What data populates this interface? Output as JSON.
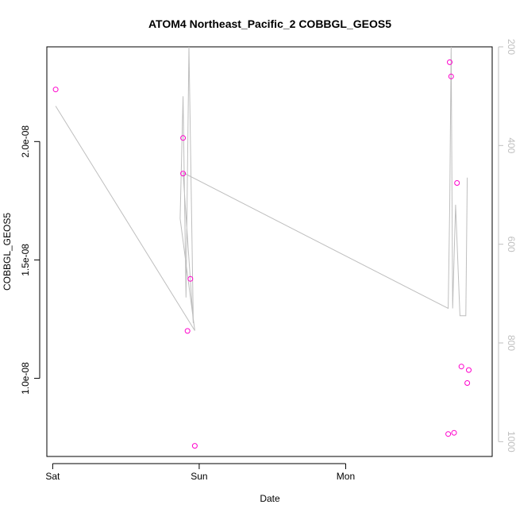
{
  "chart_data": {
    "type": "scatter",
    "title": "ATOM4 Northeast_Pacific_2 COBBGL_GEOS5",
    "xlabel": "Date",
    "ylabel": "COBBGL_GEOS5",
    "x_ticks": [
      "Sat",
      "Sun",
      "Mon"
    ],
    "y_ticks": [
      "1.0e-08",
      "1.5e-08",
      "2.0e-08"
    ],
    "y_tick_values": [
      1e-08,
      1.5e-08,
      2e-08
    ],
    "y2_ticks": [
      "200",
      "400",
      "600",
      "800",
      "1000"
    ],
    "y2_tick_values": [
      200,
      400,
      600,
      800,
      1000
    ],
    "y2_reversed": true,
    "x_day_positions": {
      "Sat": 0,
      "Sun": 1,
      "Mon": 2
    },
    "xlim": [
      -0.04,
      3.0
    ],
    "ylim": [
      6.7e-09,
      2.4e-08
    ],
    "y2lim": [
      1030,
      200
    ],
    "point_color": "#ff00cc",
    "line_color": "#bebebe",
    "points": [
      {
        "x": 0.02,
        "y": 2.22e-08
      },
      {
        "x": 0.89,
        "y": 2.015e-08
      },
      {
        "x": 0.89,
        "y": 1.865e-08
      },
      {
        "x": 0.94,
        "y": 1.42e-08
      },
      {
        "x": 0.92,
        "y": 1.2e-08
      },
      {
        "x": 0.97,
        "y": 7.15e-09
      },
      {
        "x": 2.71,
        "y": 2.335e-08
      },
      {
        "x": 2.72,
        "y": 2.275e-08
      },
      {
        "x": 2.76,
        "y": 1.825e-08
      },
      {
        "x": 2.79,
        "y": 1.05e-08
      },
      {
        "x": 2.83,
        "y": 9.8e-09
      },
      {
        "x": 2.84,
        "y": 1.035e-08
      },
      {
        "x": 2.7,
        "y": 7.65e-09
      },
      {
        "x": 2.74,
        "y": 7.7e-09
      }
    ],
    "pressure_line": [
      {
        "x": 0.02,
        "p": 320
      },
      {
        "x": 0.97,
        "p": 775
      },
      {
        "x": 0.87,
        "p": 548
      },
      {
        "x": 0.89,
        "p": 300
      },
      {
        "x": 0.91,
        "p": 708
      },
      {
        "x": 0.93,
        "p": 200
      },
      {
        "x": 0.96,
        "p": 760
      },
      {
        "x": 0.89,
        "p": 455
      },
      {
        "x": 2.7,
        "p": 730
      },
      {
        "x": 2.71,
        "p": 525
      },
      {
        "x": 2.72,
        "p": 200
      },
      {
        "x": 2.73,
        "p": 730
      },
      {
        "x": 2.75,
        "p": 520
      },
      {
        "x": 2.78,
        "p": 745
      },
      {
        "x": 2.82,
        "p": 745
      },
      {
        "x": 2.83,
        "p": 465
      }
    ],
    "grid": false,
    "legend": "none"
  }
}
